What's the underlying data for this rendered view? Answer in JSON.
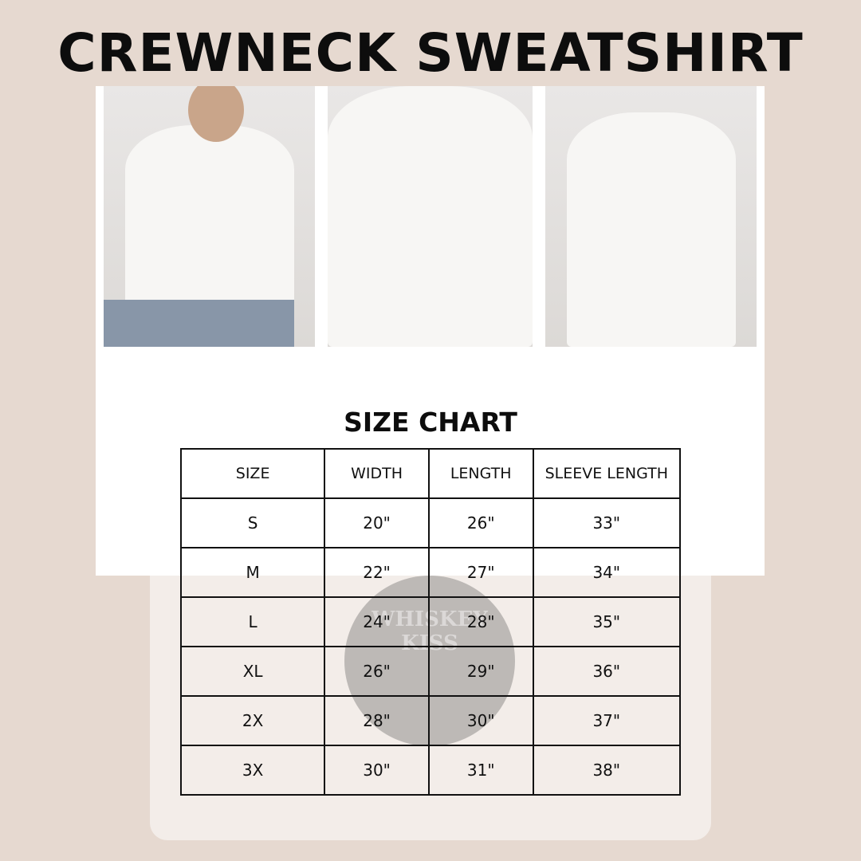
{
  "title": "CREWNECK SWEATSHIRT",
  "watermark": "WHISKEY KISS",
  "size_chart": {
    "title": "SIZE CHART",
    "headers": [
      "SIZE",
      "WIDTH",
      "LENGTH",
      "SLEEVE LENGTH"
    ],
    "rows": [
      [
        "S",
        "20\"",
        "26\"",
        "33\""
      ],
      [
        "M",
        "22\"",
        "27\"",
        "34\""
      ],
      [
        "L",
        "24\"",
        "28\"",
        "35\""
      ],
      [
        "XL",
        "26\"",
        "29\"",
        "36\""
      ],
      [
        "2X",
        "28\"",
        "30\"",
        "37\""
      ],
      [
        "3X",
        "30\"",
        "31\"",
        "38\""
      ]
    ]
  }
}
